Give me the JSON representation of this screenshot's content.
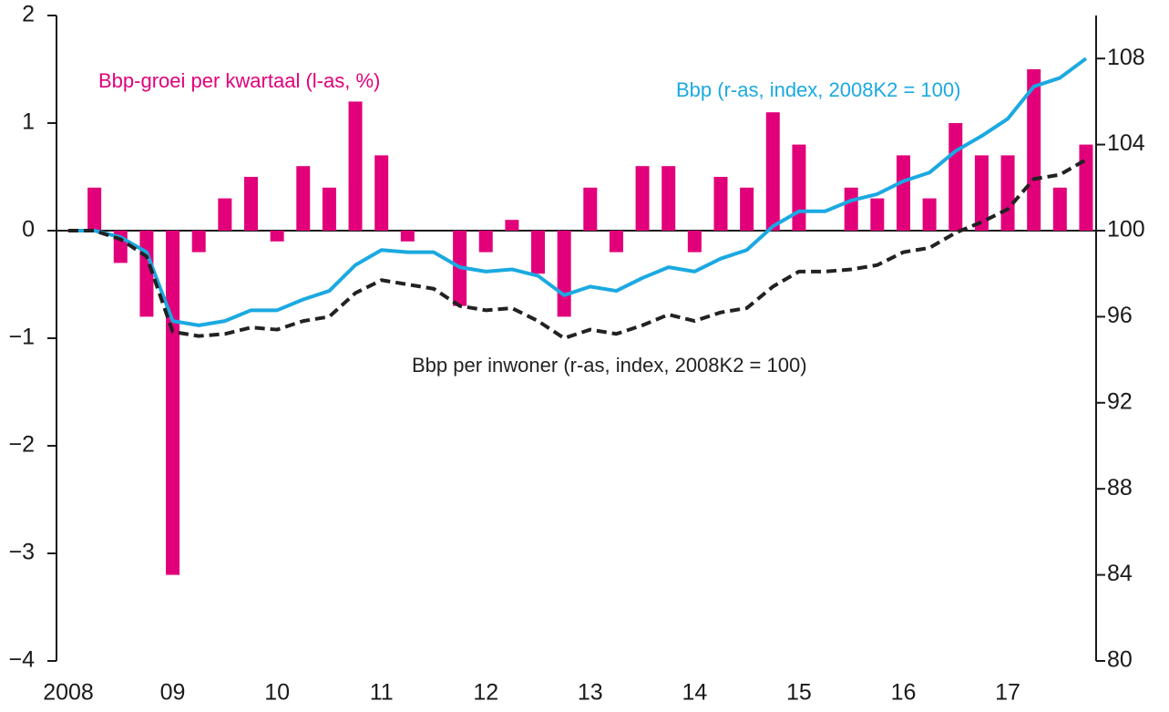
{
  "chart_data": {
    "type": "bar",
    "categories": [
      "2008",
      null,
      null,
      null,
      "09",
      null,
      null,
      null,
      "10",
      null,
      null,
      null,
      "11",
      null,
      null,
      null,
      "12",
      null,
      null,
      null,
      "13",
      null,
      null,
      null,
      "14",
      null,
      null,
      null,
      "15",
      null,
      null,
      null,
      "16",
      null,
      null,
      null,
      "17",
      null,
      null,
      null
    ],
    "series": [
      {
        "name": "Bbp-groei per kwartaal (l-as, %)",
        "type": "bar",
        "color": "#e2007a",
        "values": [
          0,
          0.4,
          -0.3,
          -0.8,
          -3.2,
          -0.2,
          0.3,
          0.5,
          -0.1,
          0.6,
          0.4,
          1.2,
          0.7,
          -0.1,
          0,
          -0.7,
          -0.2,
          0.1,
          -0.4,
          -0.8,
          0.4,
          -0.2,
          0.6,
          0.6,
          -0.2,
          0.5,
          0.4,
          1.1,
          0.8,
          0,
          0.4,
          0.3,
          0.7,
          0.3,
          1.0,
          0.7,
          0.7,
          1.5,
          0.4,
          0.8
        ]
      },
      {
        "name": "Bbp (r-as, index, 2008K2 = 100)",
        "type": "line",
        "axis": "y2",
        "color": "#1ba9e1",
        "dashed": false,
        "values": [
          100,
          100,
          99.7,
          99.0,
          95.8,
          95.6,
          95.8,
          96.3,
          96.3,
          96.8,
          97.2,
          98.4,
          99.1,
          99.0,
          99.0,
          98.3,
          98.1,
          98.2,
          97.9,
          97.0,
          97.4,
          97.2,
          97.8,
          98.3,
          98.1,
          98.7,
          99.1,
          100.2,
          100.9,
          100.9,
          101.4,
          101.7,
          102.3,
          102.7,
          103.7,
          104.4,
          105.2,
          106.7,
          107.1,
          108.0
        ]
      },
      {
        "name": "Bbp per inwoner (r-as, index, 2008K2 = 100)",
        "type": "line",
        "axis": "y2",
        "color": "#222222",
        "dashed": true,
        "values": [
          100,
          100,
          99.6,
          98.8,
          95.3,
          95.1,
          95.2,
          95.5,
          95.4,
          95.8,
          96.0,
          97.1,
          97.7,
          97.5,
          97.3,
          96.5,
          96.3,
          96.4,
          95.8,
          95.0,
          95.4,
          95.2,
          95.6,
          96.1,
          95.8,
          96.2,
          96.4,
          97.4,
          98.1,
          98.1,
          98.2,
          98.4,
          99.0,
          99.2,
          99.9,
          100.4,
          101.0,
          102.4,
          102.6,
          103.3
        ]
      }
    ],
    "ylim": [
      -4,
      2
    ],
    "yticks": [
      {
        "value": -4,
        "label": "−4"
      },
      {
        "value": -3,
        "label": "−3"
      },
      {
        "value": -2,
        "label": "−2"
      },
      {
        "value": -1,
        "label": "−1"
      },
      0,
      1,
      2
    ],
    "y2lim": [
      80,
      110
    ],
    "y2ticks": [
      80,
      84,
      88,
      92,
      96,
      100,
      104,
      108
    ],
    "grid": false
  }
}
